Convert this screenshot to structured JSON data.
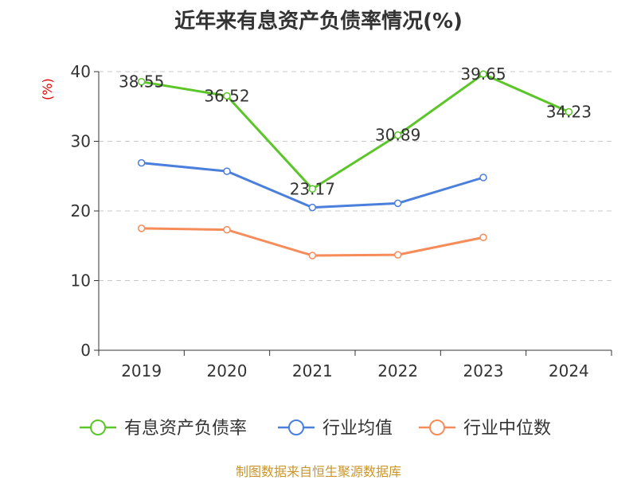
{
  "chart_data": {
    "type": "line",
    "title": "近年来有息资产负债率情况(%)",
    "ylabel": "(%)",
    "xlabel": "",
    "categories": [
      "2019",
      "2020",
      "2021",
      "2022",
      "2023",
      "2024"
    ],
    "ylim": [
      0,
      40
    ],
    "yticks": [
      0,
      10,
      20,
      30,
      40
    ],
    "grid": true,
    "legend_position": "bottom",
    "series": [
      {
        "name": "有息资产负债率",
        "color": "#5cc52a",
        "values": [
          38.55,
          36.52,
          23.17,
          30.89,
          39.65,
          34.23
        ],
        "show_labels": true
      },
      {
        "name": "行业均值",
        "color": "#4a7fdc",
        "values": [
          26.9,
          25.7,
          20.5,
          21.1,
          24.8,
          null
        ],
        "show_labels": false
      },
      {
        "name": "行业中位数",
        "color": "#f58c5a",
        "values": [
          17.5,
          17.3,
          13.6,
          13.7,
          16.2,
          null
        ],
        "show_labels": false
      }
    ]
  },
  "footer": "制图数据来自恒生聚源数据库"
}
